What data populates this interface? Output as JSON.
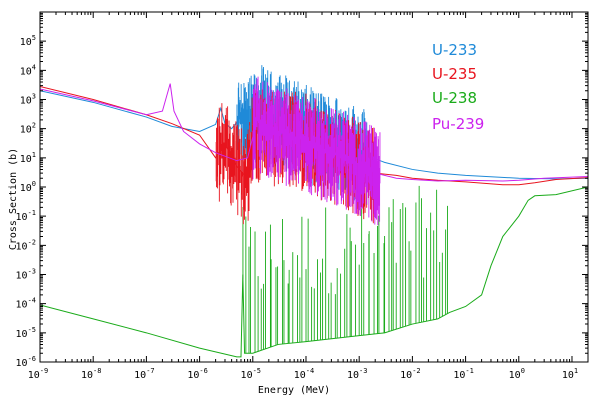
{
  "chart_data": {
    "type": "line",
    "title": "",
    "xlabel": "Energy (MeV)",
    "ylabel": "Cross Section (b)",
    "x_scale": "log",
    "y_scale": "log",
    "xlim": [
      1e-09,
      20
    ],
    "ylim": [
      1e-06,
      1000000.0
    ],
    "x_ticks": [
      {
        "base": "10",
        "exp": "-9",
        "value": 1e-09
      },
      {
        "base": "10",
        "exp": "-8",
        "value": 1e-08
      },
      {
        "base": "10",
        "exp": "-7",
        "value": 1e-07
      },
      {
        "base": "10",
        "exp": "-6",
        "value": 1e-06
      },
      {
        "base": "10",
        "exp": "-5",
        "value": 1e-05
      },
      {
        "base": "10",
        "exp": "-4",
        "value": 0.0001
      },
      {
        "base": "10",
        "exp": "-3",
        "value": 0.001
      },
      {
        "base": "10",
        "exp": "-2",
        "value": 0.01
      },
      {
        "base": "10",
        "exp": "-1",
        "value": 0.1
      },
      {
        "base": "10",
        "exp": "0",
        "value": 1
      },
      {
        "base": "10",
        "exp": "1",
        "value": 10
      }
    ],
    "y_ticks": [
      {
        "base": "10",
        "exp": "-6",
        "value": 1e-06
      },
      {
        "base": "10",
        "exp": "-5",
        "value": 1e-05
      },
      {
        "base": "10",
        "exp": "-4",
        "value": 0.0001
      },
      {
        "base": "10",
        "exp": "-3",
        "value": 0.001
      },
      {
        "base": "10",
        "exp": "-2",
        "value": 0.01
      },
      {
        "base": "10",
        "exp": "-1",
        "value": 0.1
      },
      {
        "base": "10",
        "exp": "0",
        "value": 1
      },
      {
        "base": "10",
        "exp": "1",
        "value": 10
      },
      {
        "base": "10",
        "exp": "2",
        "value": 100
      },
      {
        "base": "10",
        "exp": "3",
        "value": 1000
      },
      {
        "base": "10",
        "exp": "4",
        "value": 10000
      },
      {
        "base": "10",
        "exp": "5",
        "value": 100000
      }
    ],
    "grid": false,
    "legend_position": "top-right",
    "series": [
      {
        "name": "U-233",
        "color": "#1f8ad8",
        "points": [
          [
            1e-09,
            2000
          ],
          [
            1e-08,
            800
          ],
          [
            1e-07,
            250
          ],
          [
            3e-07,
            120
          ],
          [
            1e-06,
            80
          ],
          [
            2e-06,
            140
          ],
          [
            2.5e-06,
            500
          ],
          [
            3e-06,
            150
          ],
          [
            4e-06,
            100
          ],
          [
            6e-06,
            250
          ],
          [
            8e-06,
            120
          ],
          [
            1e-05,
            200
          ],
          [
            1.5e-05,
            400
          ],
          [
            2e-05,
            250
          ],
          [
            4e-05,
            200
          ],
          [
            0.0001,
            80
          ],
          [
            0.0002,
            50
          ],
          [
            0.0005,
            30
          ],
          [
            0.001,
            15
          ],
          [
            0.003,
            7
          ],
          [
            0.01,
            4
          ],
          [
            0.03,
            3
          ],
          [
            0.1,
            2.5
          ],
          [
            1,
            2
          ],
          [
            5,
            1.9
          ],
          [
            20,
            2
          ]
        ],
        "resonance_region": [
          5e-06,
          0.0014
        ]
      },
      {
        "name": "U-235",
        "color": "#e8141e",
        "points": [
          [
            1e-09,
            2800
          ],
          [
            1e-08,
            1000
          ],
          [
            1e-07,
            300
          ],
          [
            3e-07,
            150
          ],
          [
            1e-06,
            60
          ],
          [
            2e-06,
            10
          ],
          [
            3e-06,
            30
          ],
          [
            5e-06,
            5
          ],
          [
            8e-06,
            2
          ],
          [
            1e-05,
            100
          ],
          [
            2e-05,
            50
          ],
          [
            5e-05,
            60
          ],
          [
            0.0001,
            40
          ],
          [
            0.0002,
            20
          ],
          [
            0.0005,
            10
          ],
          [
            0.001,
            5
          ],
          [
            0.002,
            3
          ],
          [
            0.005,
            2.5
          ],
          [
            0.01,
            2
          ],
          [
            0.03,
            1.7
          ],
          [
            0.1,
            1.5
          ],
          [
            0.5,
            1.2
          ],
          [
            1,
            1.2
          ],
          [
            2,
            1.4
          ],
          [
            5,
            1.8
          ],
          [
            20,
            2.1
          ]
        ],
        "resonance_region": [
          2e-06,
          0.002
        ]
      },
      {
        "name": "U-238",
        "color": "#1aab1a",
        "points": [
          [
            1e-09,
            9e-05
          ],
          [
            1e-08,
            3e-05
          ],
          [
            1e-07,
            1e-05
          ],
          [
            1e-06,
            3e-06
          ],
          [
            5e-06,
            1.5e-06
          ],
          [
            6e-06,
            1.5e-06
          ],
          [
            6.5e-06,
            0.001
          ],
          [
            7e-06,
            2e-06
          ],
          [
            1e-05,
            2e-06
          ],
          [
            3e-05,
            4e-06
          ],
          [
            0.0001,
            5e-06
          ],
          [
            0.001,
            8e-06
          ],
          [
            0.003,
            1e-05
          ],
          [
            0.01,
            2e-05
          ],
          [
            0.03,
            3e-05
          ],
          [
            0.05,
            5e-05
          ],
          [
            0.1,
            8e-05
          ],
          [
            0.2,
            0.0002
          ],
          [
            0.3,
            0.002
          ],
          [
            0.5,
            0.02
          ],
          [
            1,
            0.1
          ],
          [
            1.5,
            0.35
          ],
          [
            2,
            0.5
          ],
          [
            5,
            0.55
          ],
          [
            20,
            1
          ]
        ],
        "resonance_region": [
          6e-06,
          0.05
        ]
      },
      {
        "name": "Pu-239",
        "color": "#cc22ee",
        "points": [
          [
            1e-09,
            2300
          ],
          [
            1e-08,
            900
          ],
          [
            1e-07,
            300
          ],
          [
            2e-07,
            400
          ],
          [
            2.8e-07,
            3500
          ],
          [
            3.3e-07,
            400
          ],
          [
            5e-07,
            80
          ],
          [
            1e-06,
            30
          ],
          [
            2e-06,
            15
          ],
          [
            5e-06,
            8
          ],
          [
            8e-06,
            10
          ],
          [
            1.2e-05,
            200
          ],
          [
            3e-05,
            80
          ],
          [
            0.0001,
            40
          ],
          [
            0.0003,
            15
          ],
          [
            0.001,
            6
          ],
          [
            0.002,
            3
          ],
          [
            0.005,
            2
          ],
          [
            0.01,
            1.8
          ],
          [
            0.03,
            1.6
          ],
          [
            0.1,
            1.7
          ],
          [
            0.5,
            1.6
          ],
          [
            1,
            1.7
          ],
          [
            3,
            2.0
          ],
          [
            20,
            2.3
          ]
        ],
        "resonance_region": [
          1e-05,
          0.0025
        ]
      }
    ]
  }
}
